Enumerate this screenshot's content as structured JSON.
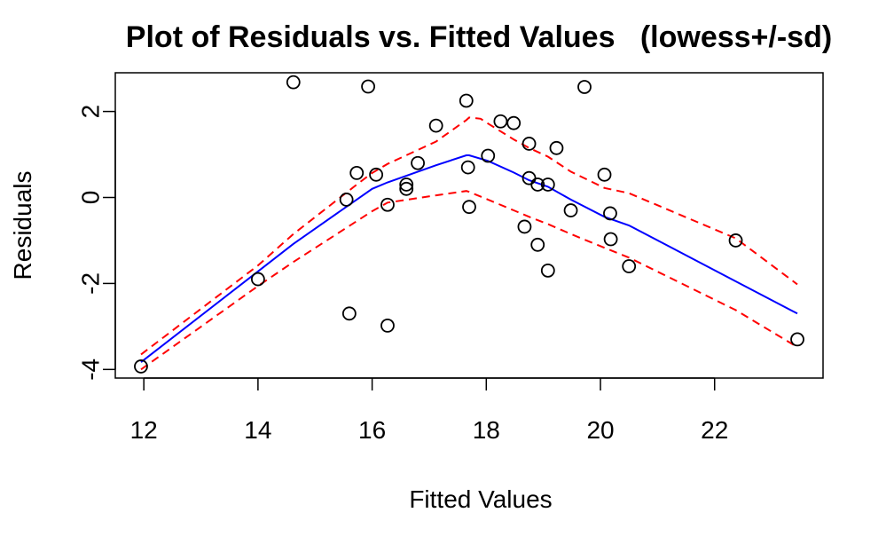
{
  "chart_data": {
    "type": "scatter",
    "title": "Plot of Residuals vs. Fitted Values   (lowess+/-sd)",
    "xlabel": "Fitted Values",
    "ylabel": "Residuals",
    "xlim": [
      11.5,
      23.9
    ],
    "ylim": [
      -4.2,
      2.9
    ],
    "xticks": [
      12,
      14,
      16,
      18,
      20,
      22
    ],
    "yticks": [
      -4,
      -2,
      0,
      2
    ],
    "grid": false,
    "legend": "none",
    "points": [
      {
        "x": 11.95,
        "y": -3.93
      },
      {
        "x": 14.0,
        "y": -1.9
      },
      {
        "x": 14.62,
        "y": 2.68
      },
      {
        "x": 15.55,
        "y": -0.05
      },
      {
        "x": 15.6,
        "y": -2.7
      },
      {
        "x": 15.73,
        "y": 0.57
      },
      {
        "x": 15.93,
        "y": 2.58
      },
      {
        "x": 16.07,
        "y": 0.53
      },
      {
        "x": 16.27,
        "y": -0.17
      },
      {
        "x": 16.27,
        "y": -2.98
      },
      {
        "x": 16.6,
        "y": 0.3
      },
      {
        "x": 16.6,
        "y": 0.2
      },
      {
        "x": 16.8,
        "y": 0.8
      },
      {
        "x": 17.12,
        "y": 1.67
      },
      {
        "x": 17.65,
        "y": 2.25
      },
      {
        "x": 17.68,
        "y": 0.7
      },
      {
        "x": 17.7,
        "y": -0.22
      },
      {
        "x": 18.03,
        "y": 0.97
      },
      {
        "x": 18.25,
        "y": 1.77
      },
      {
        "x": 18.48,
        "y": 1.73
      },
      {
        "x": 18.67,
        "y": -0.68
      },
      {
        "x": 18.75,
        "y": 1.25
      },
      {
        "x": 18.75,
        "y": 0.45
      },
      {
        "x": 18.9,
        "y": -1.1
      },
      {
        "x": 18.9,
        "y": 0.3
      },
      {
        "x": 19.08,
        "y": 0.3
      },
      {
        "x": 19.08,
        "y": -1.7
      },
      {
        "x": 19.23,
        "y": 1.15
      },
      {
        "x": 19.48,
        "y": -0.3
      },
      {
        "x": 19.72,
        "y": 2.57
      },
      {
        "x": 20.07,
        "y": 0.53
      },
      {
        "x": 20.17,
        "y": -0.37
      },
      {
        "x": 20.18,
        "y": -0.97
      },
      {
        "x": 20.5,
        "y": -1.6
      },
      {
        "x": 22.37,
        "y": -1.0
      },
      {
        "x": 23.45,
        "y": -3.3
      }
    ],
    "series": [
      {
        "style": "solid",
        "color": "#0000ff",
        "x": [
          11.95,
          14.0,
          14.62,
          15.73,
          16.0,
          16.27,
          17.12,
          17.65,
          17.7,
          18.03,
          18.48,
          18.75,
          19.08,
          19.48,
          20.07,
          20.5,
          22.37,
          23.45
        ],
        "y": [
          -3.83,
          -1.72,
          -1.08,
          -0.05,
          0.2,
          0.35,
          0.75,
          0.98,
          0.98,
          0.85,
          0.58,
          0.4,
          0.25,
          -0.05,
          -0.45,
          -0.65,
          -1.95,
          -2.7
        ]
      },
      {
        "style": "dashed",
        "color": "#ff0000",
        "x": [
          11.95,
          14.0,
          14.62,
          15.73,
          16.0,
          16.27,
          17.12,
          17.65,
          17.7,
          17.9,
          18.03,
          18.48,
          18.75,
          19.08,
          19.48,
          20.07,
          20.5,
          22.37,
          23.45
        ],
        "y": [
          -3.65,
          -1.58,
          -0.85,
          0.3,
          0.57,
          0.78,
          1.3,
          1.8,
          1.86,
          1.83,
          1.72,
          1.35,
          1.15,
          0.95,
          0.6,
          0.22,
          0.1,
          -0.95,
          -2.02
        ]
      },
      {
        "style": "dashed",
        "color": "#ff0000",
        "x": [
          11.95,
          14.0,
          14.62,
          15.73,
          16.0,
          16.27,
          17.12,
          17.65,
          17.7,
          18.03,
          18.48,
          18.75,
          19.08,
          19.48,
          20.07,
          20.5,
          22.37,
          23.45
        ],
        "y": [
          -4.0,
          -2.06,
          -1.5,
          -0.55,
          -0.32,
          -0.12,
          0.05,
          0.15,
          0.13,
          -0.05,
          -0.3,
          -0.45,
          -0.62,
          -0.85,
          -1.17,
          -1.4,
          -2.62,
          -3.48
        ]
      }
    ]
  }
}
